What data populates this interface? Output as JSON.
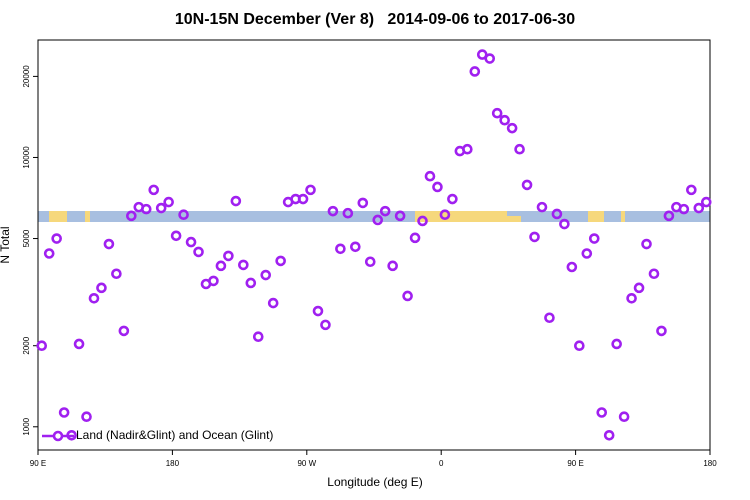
{
  "chart_data": {
    "type": "scatter",
    "title": "10N-15N December (Ver 8)   2014-09-06 to 2017-06-30",
    "x_label": "Longitude (deg E)",
    "y_label": "N Total",
    "log_y": true,
    "legend": "bottom left",
    "xlim": [
      90,
      540
    ],
    "xticks": [
      {
        "value": 90,
        "label": "90 E"
      },
      {
        "value": 180,
        "label": "180"
      },
      {
        "value": 270,
        "label": "90 W"
      },
      {
        "value": 360,
        "label": "0"
      },
      {
        "value": 450,
        "label": "90 E"
      },
      {
        "value": 540,
        "label": "180"
      }
    ],
    "ylim": [
      820,
      27300
    ],
    "yticks": [
      1000,
      2000,
      5000,
      10000,
      20000
    ],
    "x": [
      92.5,
      97.5,
      102.5,
      107.5,
      112.5,
      117.5,
      122.5,
      127.5,
      132.5,
      137.5,
      142.5,
      147.5,
      152.5,
      157.5,
      162.5,
      167.5,
      172.5,
      177.5,
      182.5,
      187.5,
      192.5,
      197.5,
      202.5,
      207.5,
      212.5,
      217.5,
      222.5,
      227.5,
      232.5,
      237.5,
      242.5,
      247.5,
      252.5,
      257.5,
      262.5,
      267.5,
      272.5,
      277.5,
      282.5,
      287.5,
      292.5,
      297.5,
      302.5,
      307.5,
      312.5,
      317.5,
      322.5,
      327.5,
      332.5,
      337.5,
      342.5,
      347.5,
      352.5,
      357.5,
      362.5,
      367.5,
      372.5,
      377.5,
      382.5,
      387.5,
      392.5,
      397.5,
      402.5,
      407.5,
      412.5,
      417.5,
      422.5,
      427.5,
      432.5,
      437.5,
      442.5,
      447.5,
      452.5,
      457.5,
      462.5,
      467.5,
      472.5,
      477.5,
      482.5,
      487.5,
      492.5,
      497.5,
      502.5,
      507.5,
      512.5,
      517.5,
      522.5,
      527.5,
      532.5,
      537.5
    ],
    "series": [
      {
        "name": "Land (Nadir&Glint) and Ocean (Glint)",
        "color": "#a020f0",
        "values": [
          2000,
          4400,
          5000,
          1130,
          930,
          2030,
          1090,
          3000,
          3280,
          4770,
          3700,
          2270,
          6070,
          6540,
          6430,
          7580,
          6490,
          6830,
          5120,
          6130,
          4850,
          4460,
          3390,
          3480,
          3960,
          4310,
          6890,
          3990,
          3420,
          2160,
          3660,
          2880,
          4130,
          6830,
          7010,
          7010,
          7580,
          2690,
          2390,
          6320,
          4580,
          6210,
          4660,
          6780,
          4100,
          5860,
          6320,
          3960,
          6070,
          3060,
          5030,
          5810,
          8520,
          7770,
          6130,
          7010,
          10560,
          10730,
          20860,
          24100,
          23300,
          14600,
          13750,
          12850,
          10730,
          7910,
          5070,
          6540,
          2540,
          6170,
          5660,
          3920,
          2000,
          4400,
          5000,
          1130,
          930,
          2030,
          1090,
          3000,
          3280,
          4770,
          3700,
          2270,
          6070,
          6540,
          6430,
          7580,
          6490,
          6830
        ]
      }
    ]
  }
}
